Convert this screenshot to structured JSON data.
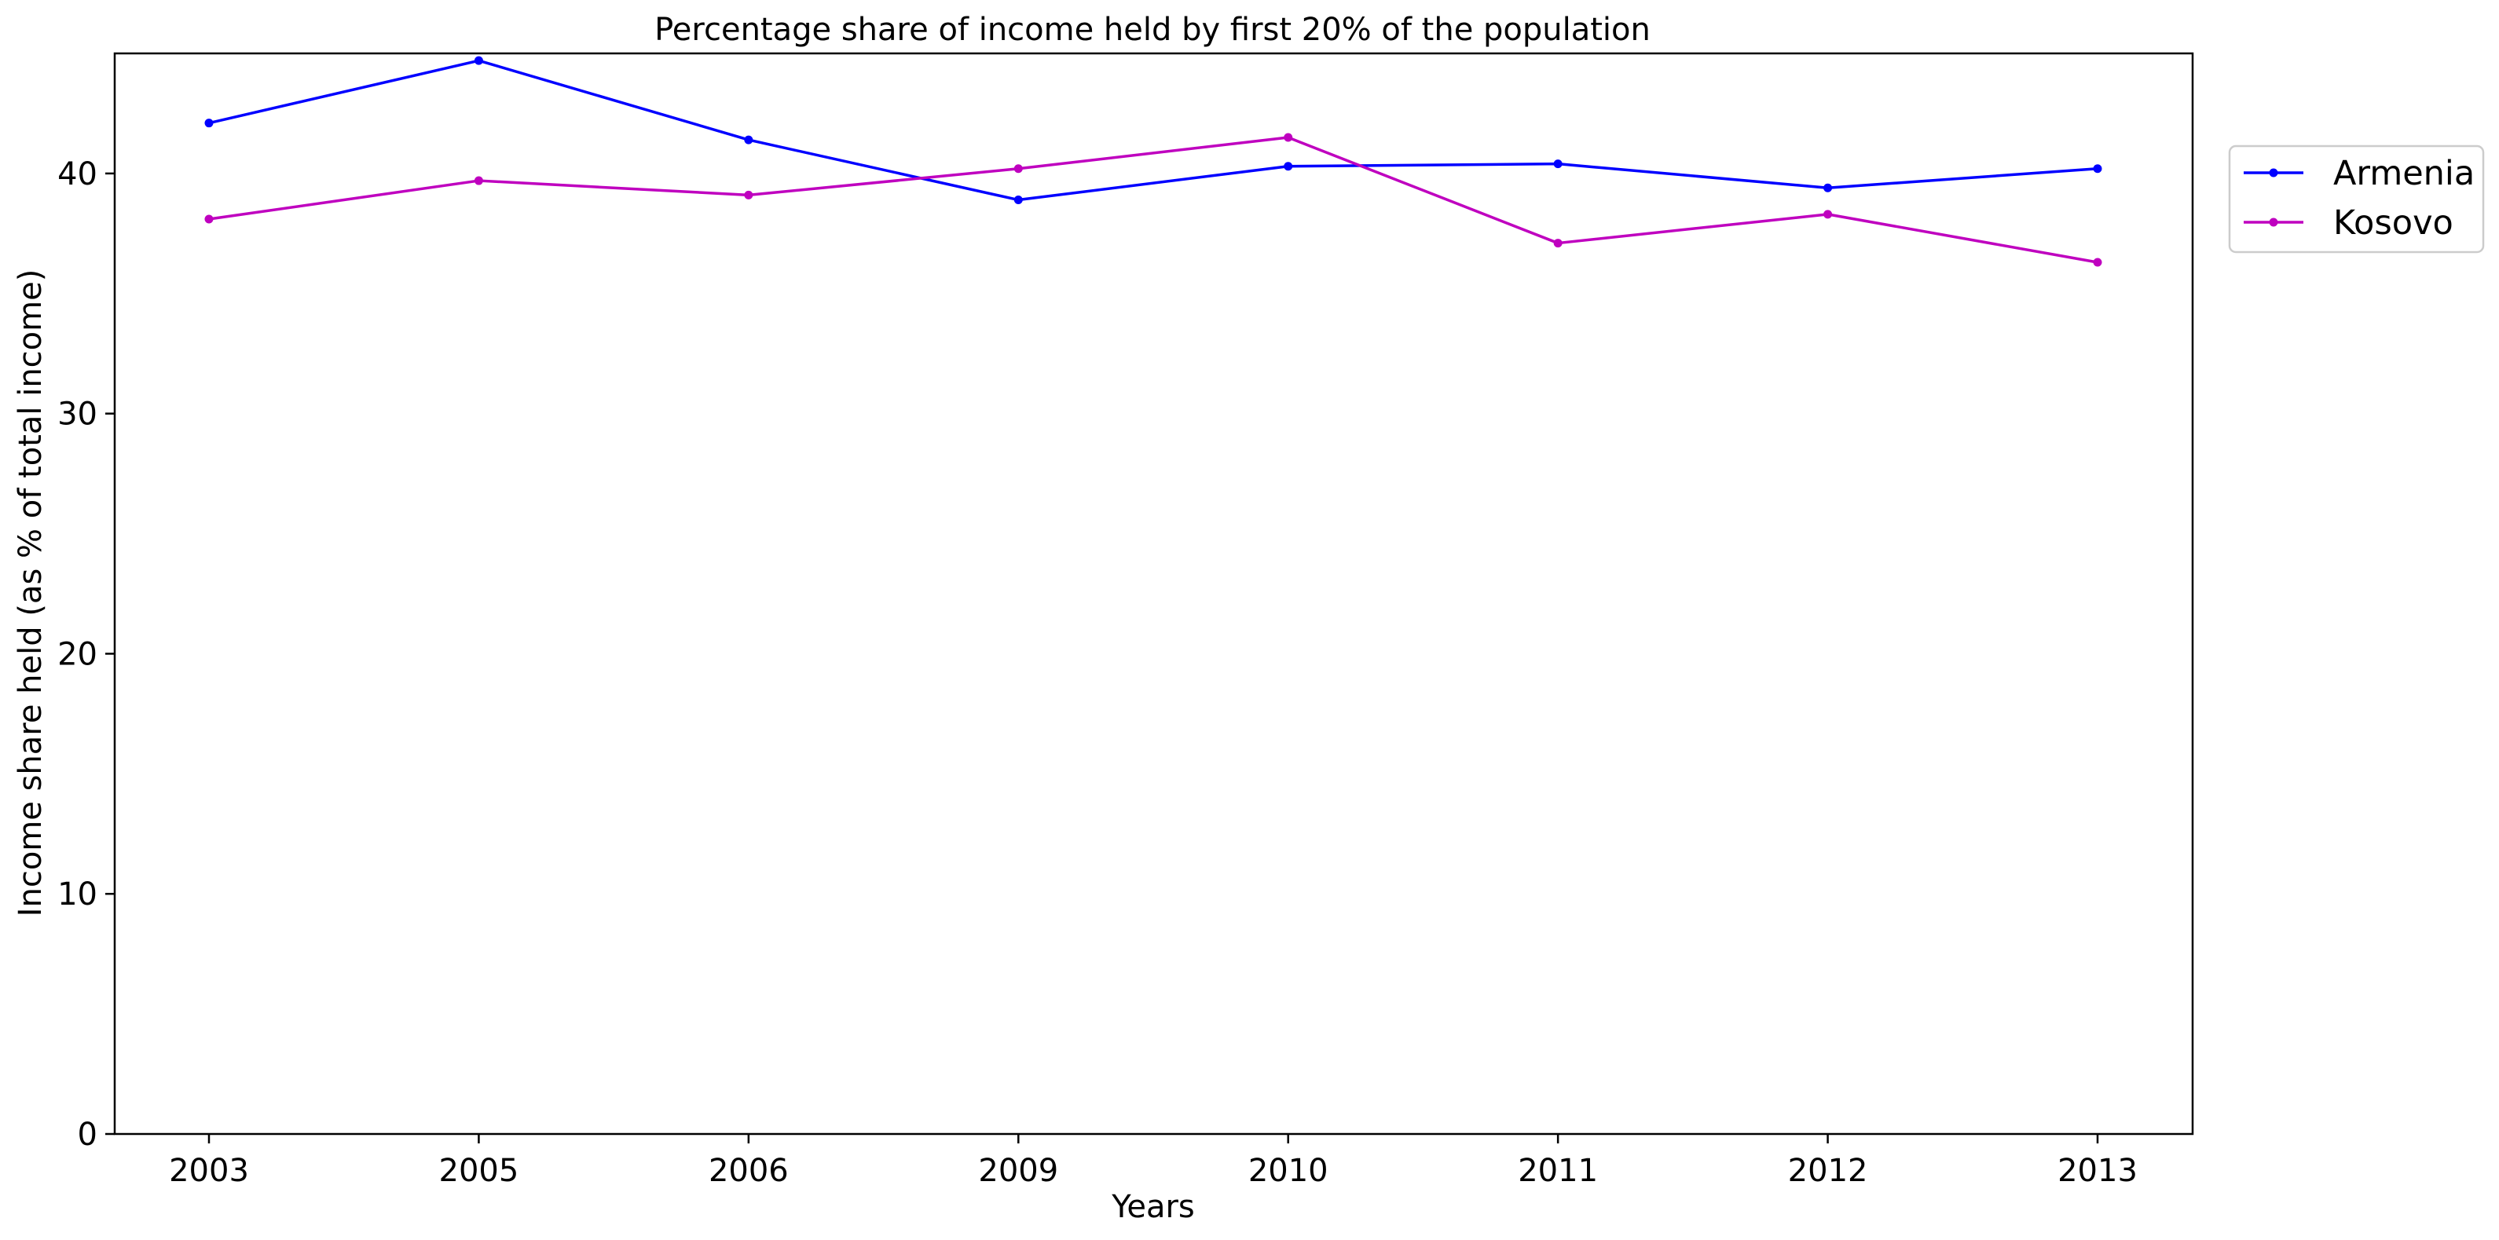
{
  "chart_data": {
    "type": "line",
    "title": "Percentage share of income held by first 20% of the population",
    "xlabel": "Years",
    "ylabel": "Income share held (as % of total income)",
    "categories": [
      "2003",
      "2005",
      "2006",
      "2009",
      "2010",
      "2011",
      "2012",
      "2013"
    ],
    "yticks": [
      "0",
      "10",
      "20",
      "30",
      "40"
    ],
    "ylim": [
      0,
      45
    ],
    "grid": false,
    "legend_position": "outside-right-top",
    "series": [
      {
        "name": "Armenia",
        "color": "#0000ff",
        "values": [
          42.1,
          44.7,
          41.4,
          38.9,
          40.3,
          40.4,
          39.4,
          40.2
        ]
      },
      {
        "name": "Kosovo",
        "color": "#bf00bf",
        "values": [
          38.1,
          39.7,
          39.1,
          40.2,
          41.5,
          37.1,
          38.3,
          36.3
        ]
      }
    ]
  }
}
